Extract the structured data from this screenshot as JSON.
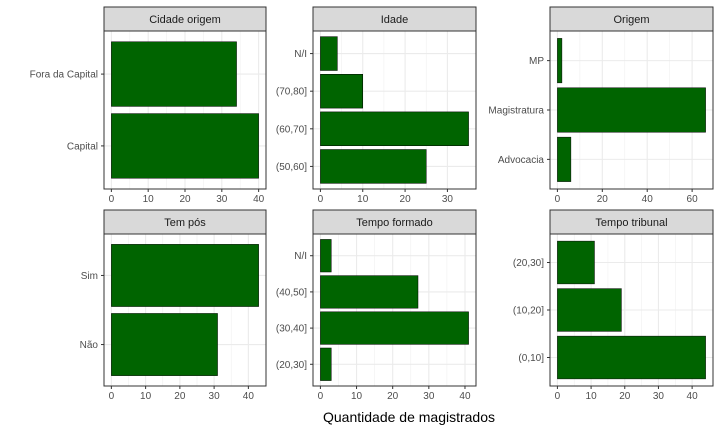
{
  "chart_data": {
    "type": "bar",
    "orientation": "horizontal",
    "xlabel": "Quantidade de magistrados",
    "bar_color": "#006400",
    "bar_outline": "#000000",
    "panels": [
      {
        "title": "Cidade origem",
        "categories": [
          "Capital",
          "Fora da Capital"
        ],
        "values": [
          40,
          34
        ],
        "xlim": [
          -2,
          42
        ],
        "xticks": [
          0,
          10,
          20,
          30,
          40
        ]
      },
      {
        "title": "Idade",
        "categories": [
          "(50,60]",
          "(60,70]",
          "(70,80]",
          "N/I"
        ],
        "values": [
          25,
          35,
          10,
          4
        ],
        "xlim": [
          -1.75,
          36.75
        ],
        "xticks": [
          0,
          10,
          20,
          30
        ]
      },
      {
        "title": "Origem",
        "categories": [
          "Advocacia",
          "Magistratura",
          "MP"
        ],
        "values": [
          6,
          66,
          2
        ],
        "xlim": [
          -3.3,
          69.3
        ],
        "xticks": [
          0,
          20,
          40,
          60
        ]
      },
      {
        "title": "Tem pós",
        "categories": [
          "Não",
          "Sim"
        ],
        "values": [
          31,
          43
        ],
        "xlim": [
          -2.15,
          45.15
        ],
        "xticks": [
          0,
          10,
          20,
          30,
          40
        ]
      },
      {
        "title": "Tempo formado",
        "categories": [
          "(20,30]",
          "(30,40]",
          "(40,50]",
          "N/I"
        ],
        "values": [
          3,
          41,
          27,
          3
        ],
        "xlim": [
          -2.05,
          43.05
        ],
        "xticks": [
          0,
          10,
          20,
          30,
          40
        ]
      },
      {
        "title": "Tempo tribunal",
        "categories": [
          "(0,10]",
          "(10,20]",
          "(20,30]"
        ],
        "values": [
          44,
          19,
          11
        ],
        "xlim": [
          -2.2,
          46.2
        ],
        "xticks": [
          0,
          10,
          20,
          30,
          40
        ]
      }
    ]
  }
}
